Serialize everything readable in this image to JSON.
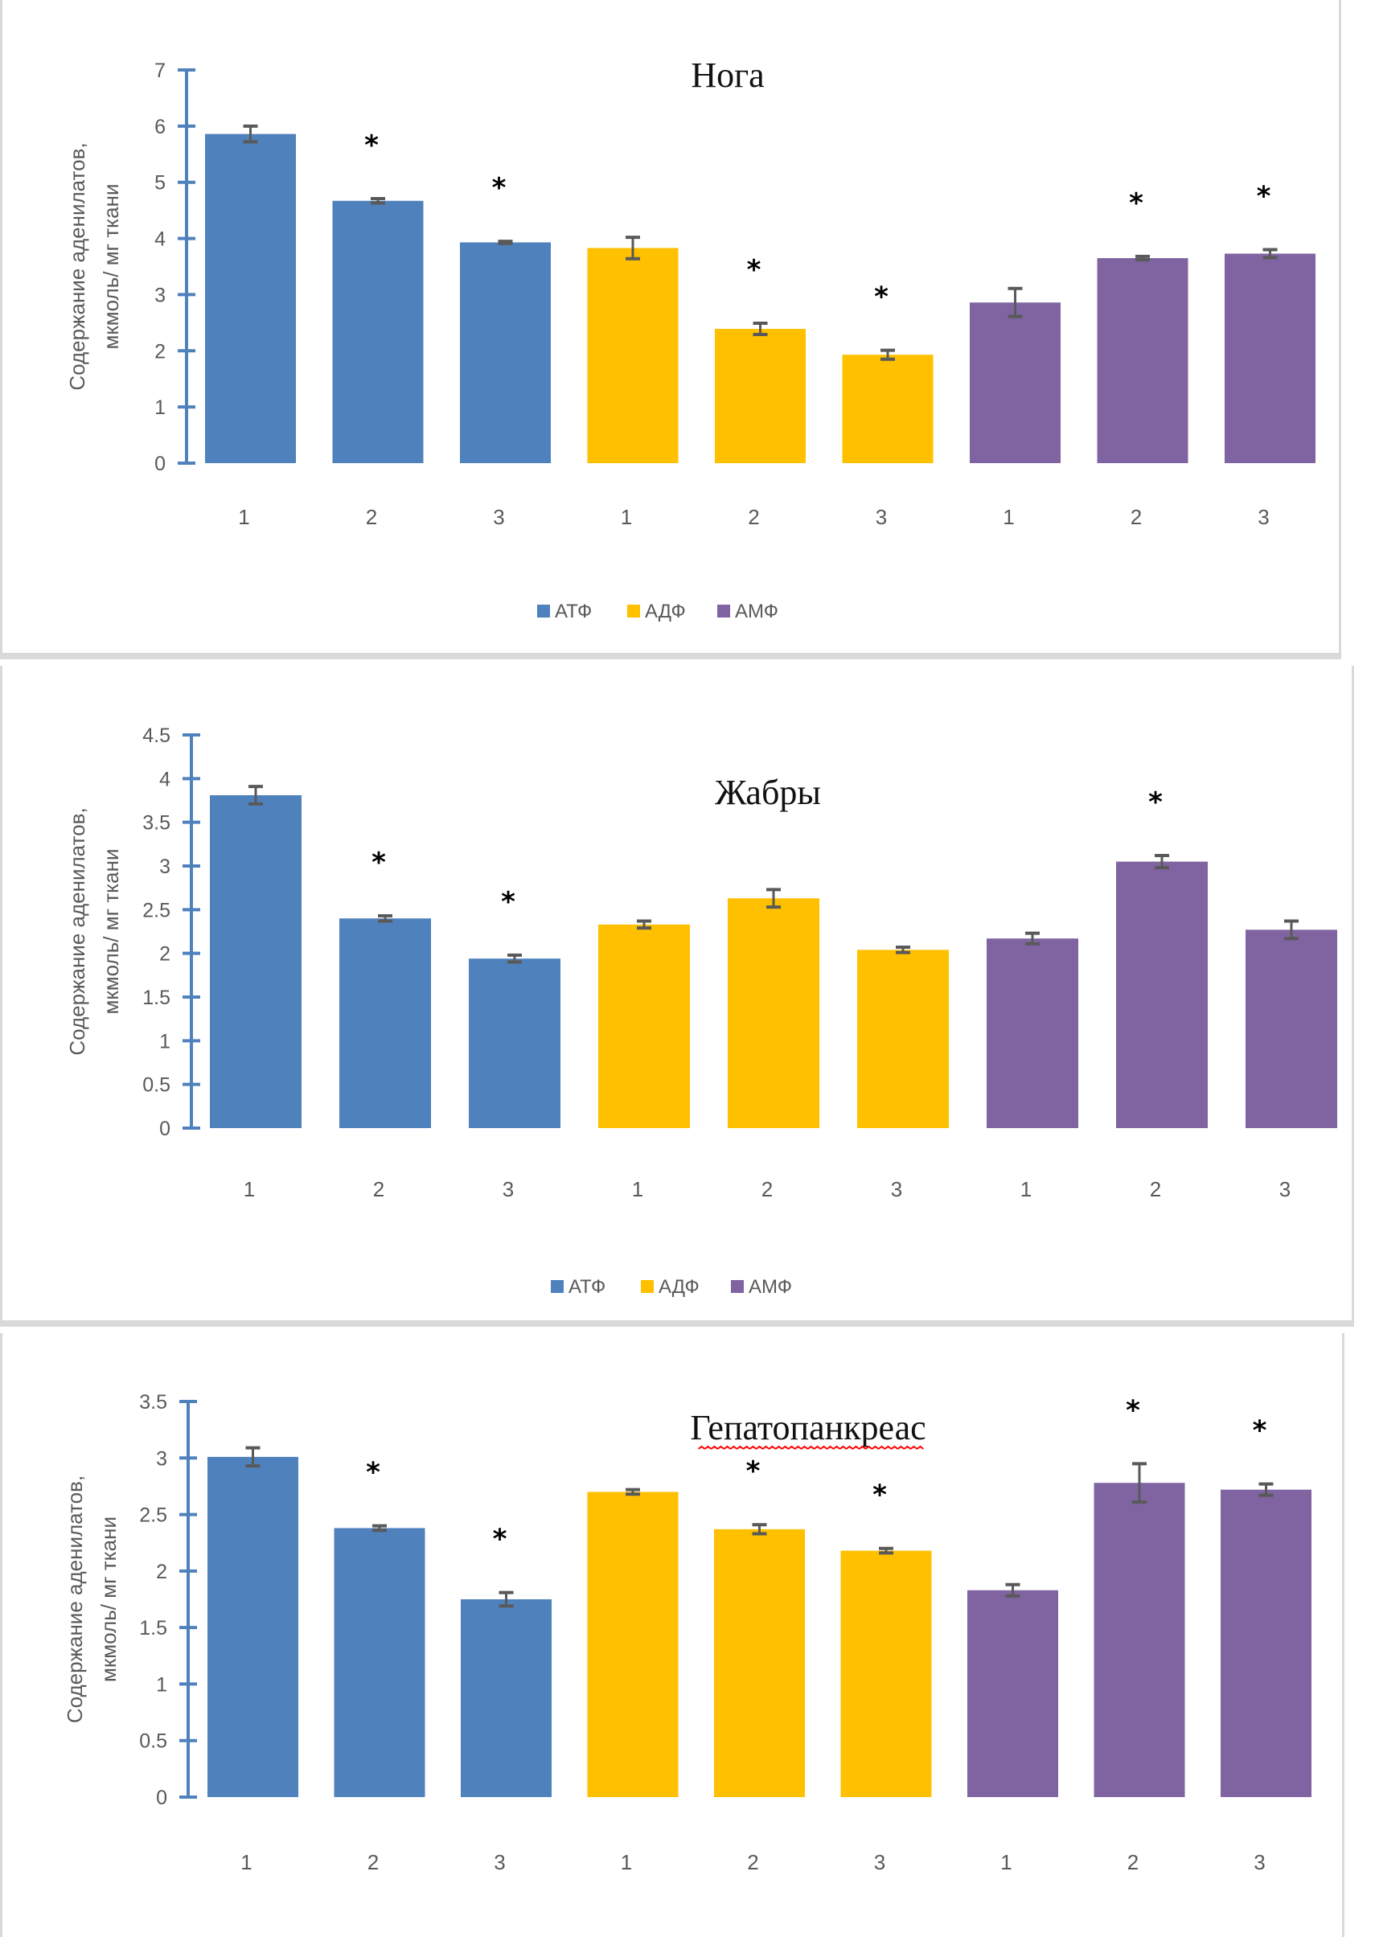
{
  "colors": {
    "АТФ": "#4f81bd",
    "АДФ": "#ffc000",
    "АМФ": "#8064a2",
    "axis": "#4f81bd",
    "error_bar": "#595959",
    "panel_border": "#d9d9d9",
    "spellcheck_underline": "#ff0000"
  },
  "chart_data": [
    {
      "type": "bar",
      "title": "Нога",
      "ylabel_line1": "Содержание аденилатов,",
      "ylabel_line2": "мкмоль/ мг ткани",
      "xlabel": "",
      "ylim": [
        0,
        7
      ],
      "yticks": [
        "0",
        "1",
        "2",
        "3",
        "4",
        "5",
        "6",
        "7"
      ],
      "ytick_values": [
        0,
        1,
        2,
        3,
        4,
        5,
        6,
        7
      ],
      "categories": [
        "1",
        "2",
        "3",
        "1",
        "2",
        "3",
        "1",
        "2",
        "3"
      ],
      "groups": [
        "АТФ",
        "АТФ",
        "АТФ",
        "АДФ",
        "АДФ",
        "АДФ",
        "АМФ",
        "АМФ",
        "АМФ"
      ],
      "values": [
        5.86,
        4.67,
        3.93,
        3.83,
        2.39,
        1.93,
        2.86,
        3.65,
        3.73
      ],
      "errors": [
        0.14,
        0.04,
        0.02,
        0.19,
        0.1,
        0.08,
        0.25,
        0.03,
        0.07
      ],
      "significant": [
        false,
        true,
        true,
        false,
        true,
        true,
        false,
        true,
        true
      ],
      "significance_marker": "*",
      "legend": [
        "АТФ",
        "АДФ",
        "АМФ"
      ],
      "legend_position": "bottom",
      "grid": false,
      "title_underlined": false
    },
    {
      "type": "bar",
      "title": "Жабры",
      "ylabel_line1": "Содержание аденилатов,",
      "ylabel_line2": "мкмоль/ мг ткани",
      "xlabel": "",
      "ylim": [
        0,
        4.5
      ],
      "yticks": [
        "0",
        "0.5",
        "1",
        "1.5",
        "2",
        "2.5",
        "3",
        "3.5",
        "4",
        "4.5"
      ],
      "ytick_values": [
        0,
        0.5,
        1,
        1.5,
        2,
        2.5,
        3,
        3.5,
        4,
        4.5
      ],
      "categories": [
        "1",
        "2",
        "3",
        "1",
        "2",
        "3",
        "1",
        "2",
        "3"
      ],
      "groups": [
        "АТФ",
        "АТФ",
        "АТФ",
        "АДФ",
        "АДФ",
        "АДФ",
        "АМФ",
        "АМФ",
        "АМФ"
      ],
      "values": [
        3.81,
        2.4,
        1.94,
        2.33,
        2.63,
        2.04,
        2.17,
        3.05,
        2.27
      ],
      "errors": [
        0.1,
        0.03,
        0.04,
        0.04,
        0.1,
        0.03,
        0.06,
        0.07,
        0.1
      ],
      "significant": [
        false,
        true,
        true,
        false,
        false,
        false,
        false,
        true,
        false
      ],
      "significance_marker": "*",
      "legend": [
        "АТФ",
        "АДФ",
        "АМФ"
      ],
      "legend_position": "bottom",
      "grid": false,
      "title_underlined": false
    },
    {
      "type": "bar",
      "title": "Гепатопанкреас",
      "ylabel_line1": "Содержание аденилатов,",
      "ylabel_line2": "мкмоль/ мг ткани",
      "xlabel": "",
      "ylim": [
        0,
        3.5
      ],
      "yticks": [
        "0",
        "0.5",
        "1",
        "1.5",
        "2",
        "2.5",
        "3",
        "3.5"
      ],
      "ytick_values": [
        0,
        0.5,
        1,
        1.5,
        2,
        2.5,
        3,
        3.5
      ],
      "categories": [
        "1",
        "2",
        "3",
        "1",
        "2",
        "3",
        "1",
        "2",
        "3"
      ],
      "groups": [
        "АТФ",
        "АТФ",
        "АТФ",
        "АДФ",
        "АДФ",
        "АДФ",
        "АМФ",
        "АМФ",
        "АМФ"
      ],
      "values": [
        3.01,
        2.38,
        1.75,
        2.7,
        2.37,
        2.18,
        1.83,
        2.78,
        2.72
      ],
      "errors": [
        0.08,
        0.02,
        0.06,
        0.02,
        0.04,
        0.02,
        0.05,
        0.17,
        0.05
      ],
      "significant": [
        false,
        true,
        true,
        false,
        true,
        true,
        false,
        true,
        true
      ],
      "significance_marker": "*",
      "legend": [],
      "legend_position": "none",
      "grid": false,
      "title_underlined": true
    }
  ]
}
